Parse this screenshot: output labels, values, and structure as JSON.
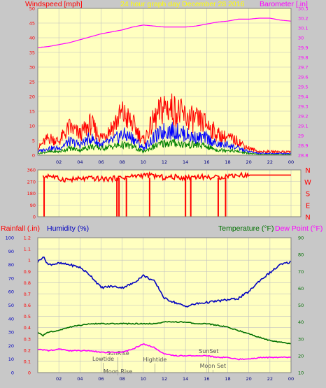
{
  "header": {
    "left": "Windspeed [mph]",
    "center": "24 hour graph day   December 28 2016",
    "right": "Barometer [.in]"
  },
  "lower_header": {
    "rain": "Rainfall (.in)",
    "humidity": "Humidity (%)",
    "temperature": "Temperature (°F)",
    "dewpoint": "Dew Point (°F)"
  },
  "colors": {
    "background": "#c8c8c8",
    "plot_bg": "#ffffc0",
    "grid": "#c0c0c0",
    "windspeed": "#ff0000",
    "gust_avg": "#0000ff",
    "wind_low": "#008000",
    "barometer": "#ff00ff",
    "direction": "#ff0000",
    "humidity": "#0000c0",
    "temperature": "#007000",
    "dewpoint": "#ff00ff"
  },
  "x_ticks": [
    "02",
    "04",
    "06",
    "08",
    "10",
    "12",
    "14",
    "16",
    "18",
    "20",
    "22",
    "00"
  ],
  "cardinals": [
    "N",
    "W",
    "S",
    "E",
    "N"
  ],
  "events": [
    {
      "label": "Lowtide",
      "hour": 6.2
    },
    {
      "label": "SunRise",
      "hour": 7.6
    },
    {
      "label": "Moon Rise",
      "hour": 7.6
    },
    {
      "label": "Hightide",
      "hour": 11.1
    },
    {
      "label": "SunSet",
      "hour": 16.2
    },
    {
      "label": "Moon Set",
      "hour": 16.6
    }
  ],
  "chart_data": [
    {
      "type": "line",
      "title": "24 hour graph day   December 28 2016",
      "xlabel": "",
      "x_range_hours": [
        0,
        24
      ],
      "y_left": {
        "label": "Windspeed [mph]",
        "range": [
          0,
          50
        ],
        "ticks": [
          0,
          5,
          10,
          15,
          20,
          25,
          30,
          35,
          40,
          45,
          50
        ]
      },
      "y_right": {
        "label": "Barometer [.in]",
        "range": [
          28.8,
          30.3
        ],
        "ticks": [
          "28.8",
          "28.9",
          "29",
          "29.1",
          "29.2",
          "29.3",
          "29.4",
          "29.5",
          "29.6",
          "29.7",
          "29.8",
          "29.9",
          "30",
          "30.1",
          "30.2",
          "30.3"
        ]
      },
      "series": [
        {
          "name": "Barometer",
          "axis": "right",
          "points": [
            [
              0,
              29.9
            ],
            [
              1,
              29.91
            ],
            [
              2,
              29.93
            ],
            [
              3,
              29.95
            ],
            [
              4,
              29.98
            ],
            [
              5,
              30.01
            ],
            [
              6,
              30.04
            ],
            [
              7,
              30.06
            ],
            [
              8,
              30.08
            ],
            [
              9,
              30.11
            ],
            [
              10,
              30.13
            ],
            [
              11,
              30.12
            ],
            [
              12,
              30.11
            ],
            [
              13,
              30.11
            ],
            [
              14,
              30.11
            ],
            [
              15,
              30.12
            ],
            [
              16,
              30.14
            ],
            [
              17,
              30.16
            ],
            [
              18,
              30.17
            ],
            [
              19,
              30.19
            ],
            [
              20,
              30.19
            ],
            [
              21,
              30.2
            ],
            [
              22,
              30.2
            ],
            [
              23,
              30.18
            ],
            [
              24,
              30.17
            ]
          ]
        },
        {
          "name": "Windspeed gust",
          "axis": "left",
          "points": [
            [
              0,
              2
            ],
            [
              1,
              5
            ],
            [
              2,
              4
            ],
            [
              3,
              8
            ],
            [
              4,
              6
            ],
            [
              5,
              9
            ],
            [
              6,
              5
            ],
            [
              7,
              8
            ],
            [
              8,
              12
            ],
            [
              9,
              9
            ],
            [
              10,
              4
            ],
            [
              11,
              10
            ],
            [
              12,
              14
            ],
            [
              13,
              13
            ],
            [
              14,
              11
            ],
            [
              15,
              10
            ],
            [
              16,
              9
            ],
            [
              17,
              6
            ],
            [
              18,
              5
            ],
            [
              19,
              4
            ],
            [
              20,
              2
            ],
            [
              21,
              1
            ],
            [
              22,
              1
            ],
            [
              23,
              1
            ],
            [
              24,
              1
            ]
          ]
        },
        {
          "name": "Windspeed average",
          "axis": "left",
          "points": [
            [
              0,
              1
            ],
            [
              1,
              2
            ],
            [
              2,
              2
            ],
            [
              3,
              4
            ],
            [
              4,
              3
            ],
            [
              5,
              5
            ],
            [
              6,
              3
            ],
            [
              7,
              4
            ],
            [
              8,
              6
            ],
            [
              9,
              5
            ],
            [
              10,
              2
            ],
            [
              11,
              5
            ],
            [
              12,
              7
            ],
            [
              13,
              7
            ],
            [
              14,
              6
            ],
            [
              15,
              5
            ],
            [
              16,
              5
            ],
            [
              17,
              3
            ],
            [
              18,
              3
            ],
            [
              19,
              2
            ],
            [
              20,
              1
            ],
            [
              21,
              0.5
            ],
            [
              22,
              0.5
            ],
            [
              23,
              0.5
            ],
            [
              24,
              0.5
            ]
          ]
        },
        {
          "name": "Windspeed low",
          "axis": "left",
          "points": [
            [
              0,
              0.5
            ],
            [
              1,
              1
            ],
            [
              2,
              1
            ],
            [
              3,
              2
            ],
            [
              4,
              1.5
            ],
            [
              5,
              2.5
            ],
            [
              6,
              2
            ],
            [
              7,
              2.5
            ],
            [
              8,
              3
            ],
            [
              9,
              2.5
            ],
            [
              10,
              1
            ],
            [
              11,
              2.5
            ],
            [
              12,
              3.5
            ],
            [
              13,
              3.5
            ],
            [
              14,
              3
            ],
            [
              15,
              3
            ],
            [
              16,
              2.5
            ],
            [
              17,
              1.5
            ],
            [
              18,
              1.5
            ],
            [
              19,
              1
            ],
            [
              20,
              0.5
            ],
            [
              21,
              0.2
            ],
            [
              22,
              0.2
            ],
            [
              23,
              0.2
            ],
            [
              24,
              0.2
            ]
          ]
        }
      ]
    },
    {
      "type": "line",
      "y_range": [
        0,
        360
      ],
      "y_ticks": [
        0,
        90,
        180,
        270,
        360
      ],
      "series": [
        {
          "name": "Wind direction",
          "points": [
            [
              0.5,
              300
            ],
            [
              1,
              320
            ],
            [
              2,
              290
            ],
            [
              3,
              285
            ],
            [
              4,
              290
            ],
            [
              5,
              295
            ],
            [
              6,
              290
            ],
            [
              7,
              292
            ],
            [
              8,
              300
            ],
            [
              9,
              310
            ],
            [
              10,
              320
            ],
            [
              11,
              315
            ],
            [
              12,
              300
            ],
            [
              13,
              305
            ],
            [
              14,
              300
            ],
            [
              15,
              310
            ],
            [
              16,
              305
            ],
            [
              17,
              300
            ],
            [
              18,
              315
            ],
            [
              19,
              320
            ],
            [
              20,
              320
            ],
            [
              21,
              320
            ],
            [
              22,
              320
            ],
            [
              23,
              320
            ],
            [
              24,
              320
            ]
          ]
        }
      ],
      "drops_hours": [
        0.6,
        7.5,
        7.7,
        8.4,
        10.6,
        14.0,
        14.5,
        17.1,
        17.8
      ]
    },
    {
      "type": "line",
      "x_range_hours": [
        0,
        24
      ],
      "y_left_rain": {
        "label": "Rainfall (.in)",
        "range": [
          0,
          1.2
        ],
        "ticks": [
          "0",
          "0.1",
          "0.2",
          "0.3",
          "0.4",
          "0.5",
          "0.6",
          "0.7",
          "0.8",
          "0.9",
          "1",
          "1.1",
          "1.2"
        ]
      },
      "y_left_humidity": {
        "label": "Humidity (%)",
        "range": [
          0,
          100
        ],
        "ticks": [
          0,
          10,
          20,
          30,
          40,
          50,
          60,
          70,
          80,
          90,
          100
        ]
      },
      "y_right": {
        "label": "Temperature (°F)",
        "range": [
          10,
          90
        ],
        "ticks": [
          10,
          20,
          30,
          40,
          50,
          60,
          70,
          80,
          90
        ]
      },
      "series": [
        {
          "name": "Humidity",
          "axis": "humidity",
          "points": [
            [
              0,
              82
            ],
            [
              0.5,
              86
            ],
            [
              1,
              80
            ],
            [
              2,
              81
            ],
            [
              3,
              80
            ],
            [
              4,
              78
            ],
            [
              5,
              72
            ],
            [
              6,
              63
            ],
            [
              7,
              64
            ],
            [
              8,
              63
            ],
            [
              9,
              66
            ],
            [
              10,
              72
            ],
            [
              11,
              68
            ],
            [
              11.5,
              62
            ],
            [
              12,
              55
            ],
            [
              13,
              52
            ],
            [
              14,
              49
            ],
            [
              15,
              51
            ],
            [
              16,
              52
            ],
            [
              17,
              53
            ],
            [
              18,
              54
            ],
            [
              19,
              55
            ],
            [
              20,
              60
            ],
            [
              21,
              68
            ],
            [
              22,
              74
            ],
            [
              23,
              80
            ],
            [
              24,
              82
            ]
          ]
        },
        {
          "name": "Temperature",
          "axis": "right",
          "points": [
            [
              0,
              34
            ],
            [
              0.5,
              32
            ],
            [
              1,
              34
            ],
            [
              2,
              35
            ],
            [
              3,
              37
            ],
            [
              4,
              38
            ],
            [
              5,
              39
            ],
            [
              6,
              39
            ],
            [
              7,
              39
            ],
            [
              8,
              39
            ],
            [
              9,
              39
            ],
            [
              10,
              39
            ],
            [
              11,
              39
            ],
            [
              12,
              40
            ],
            [
              13,
              40
            ],
            [
              14,
              40
            ],
            [
              15,
              39
            ],
            [
              16,
              39
            ],
            [
              17,
              38
            ],
            [
              18,
              37
            ],
            [
              19,
              35
            ],
            [
              20,
              33
            ],
            [
              21,
              31
            ],
            [
              22,
              29
            ],
            [
              23,
              28
            ],
            [
              24,
              27
            ]
          ]
        },
        {
          "name": "Dew Point",
          "axis": "right",
          "points": [
            [
              0,
              24
            ],
            [
              1,
              23
            ],
            [
              2,
              24
            ],
            [
              3,
              23
            ],
            [
              4,
              23
            ],
            [
              5,
              23
            ],
            [
              6,
              22
            ],
            [
              7,
              22
            ],
            [
              8,
              22
            ],
            [
              9,
              24
            ],
            [
              10,
              27
            ],
            [
              11,
              25
            ],
            [
              12,
              21
            ],
            [
              13,
              20
            ],
            [
              14,
              20
            ],
            [
              15,
              20
            ],
            [
              16,
              20
            ],
            [
              17,
              19
            ],
            [
              18,
              19
            ],
            [
              19,
              18
            ],
            [
              20,
              18
            ],
            [
              21,
              19
            ],
            [
              22,
              19
            ],
            [
              23,
              19
            ],
            [
              24,
              19
            ]
          ]
        },
        {
          "name": "Rainfall",
          "axis": "rain",
          "points": [
            [
              0,
              0
            ],
            [
              24,
              0
            ]
          ]
        }
      ]
    }
  ]
}
